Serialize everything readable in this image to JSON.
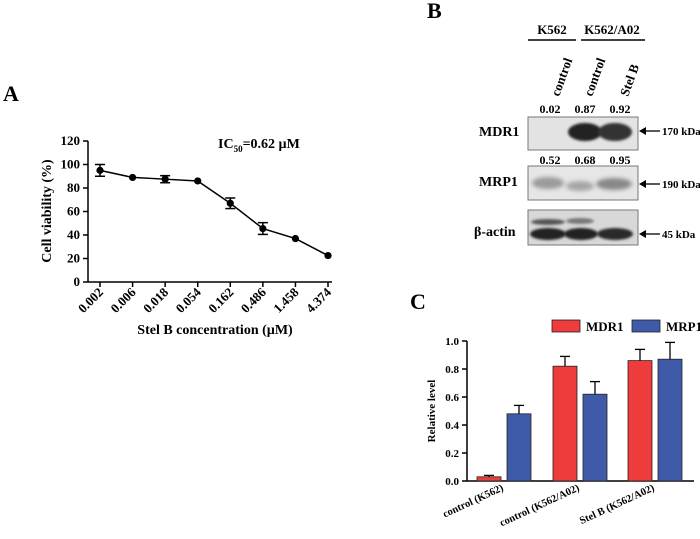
{
  "panels": {
    "a": "A",
    "b": "B",
    "c": "C"
  },
  "chart_data": [
    {
      "type": "line",
      "panel": "A",
      "annotation": "IC",
      "annotation_sub": "50",
      "annotation_rest": "=0.62 µM",
      "xlabel": "Stel B concentration (µM)",
      "ylabel": "Cell viability (%)",
      "categories": [
        "0.002",
        "0.006",
        "0.018",
        "0.054",
        "0.162",
        "0.486",
        "1.458",
        "4.374"
      ],
      "values": [
        95,
        89,
        87.5,
        86,
        67,
        45.5,
        37,
        22.5
      ],
      "errors": [
        5,
        1,
        3,
        1,
        4.5,
        5,
        0.5,
        0.5
      ],
      "ylim": [
        0,
        120
      ],
      "yticks": [
        0,
        20,
        40,
        60,
        80,
        100,
        120
      ],
      "grid": false,
      "color": "#000000"
    },
    {
      "type": "bar",
      "panel": "C",
      "ylabel": "Relative level",
      "xlabel": "",
      "categories": [
        "control (K562)",
        "control (K562/A02)",
        "Stel B (K562/A02)"
      ],
      "series": [
        {
          "name": "MDR1",
          "color": "#ee3b3b",
          "values": [
            0.03,
            0.82,
            0.86
          ],
          "errors": [
            0.01,
            0.07,
            0.08
          ]
        },
        {
          "name": "MRP1",
          "color": "#3f5aa8",
          "values": [
            0.48,
            0.62,
            0.87
          ],
          "errors": [
            0.06,
            0.09,
            0.12
          ]
        }
      ],
      "ylim": [
        0,
        1.0
      ],
      "yticks": [
        "0.0",
        "0.2",
        "0.4",
        "0.6",
        "0.8",
        "1.0"
      ],
      "legend": "top",
      "grid": false
    }
  ],
  "blot": {
    "groups": [
      "K562",
      "K562/A02"
    ],
    "lanes": [
      "control",
      "control",
      "Stel B"
    ],
    "rows": [
      {
        "label": "MDR1",
        "values": [
          "0.02",
          "0.87",
          "0.92"
        ],
        "marker": "170 kDa",
        "intensity": [
          0.0,
          0.95,
          0.9
        ]
      },
      {
        "label": "MRP1",
        "values": [
          "0.52",
          "0.68",
          "0.95"
        ],
        "marker": "190 kDa",
        "intensity": [
          0.35,
          0.3,
          0.45
        ]
      },
      {
        "label": "β-actin",
        "values": [],
        "marker": "45 kDa",
        "intensity": [
          0.9,
          0.9,
          0.85
        ]
      }
    ]
  }
}
